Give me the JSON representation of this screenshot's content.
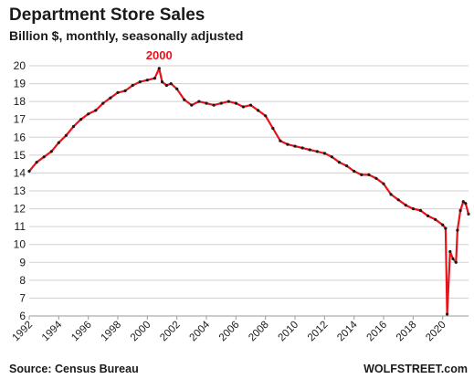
{
  "chart_data": {
    "type": "line",
    "title": "Department  Store Sales",
    "subtitle": "Billion $, monthly, seasonally adjusted",
    "source": "Source: Census Bureau",
    "brand": "WOLFSTREET.com",
    "annotation": {
      "text": "2000",
      "x": 2000.8,
      "y": 19.85
    },
    "ylim": [
      6,
      20
    ],
    "xlim": [
      1992,
      2021.75
    ],
    "y_ticks": [
      6,
      7,
      8,
      9,
      10,
      11,
      12,
      13,
      14,
      15,
      16,
      17,
      18,
      19,
      20
    ],
    "x_ticks": [
      "1992",
      "1994",
      "1996",
      "1998",
      "2000",
      "2002",
      "2004",
      "2006",
      "2008",
      "2010",
      "2012",
      "2014",
      "2016",
      "2018",
      "2020"
    ],
    "grid": "horizontal",
    "legend": "none",
    "colors": {
      "line": "#e8121a",
      "points": "#1a1a1a"
    },
    "series": [
      {
        "x": [
          1992.0,
          1992.5,
          1993.0,
          1993.5,
          1994.0,
          1994.5,
          1995.0,
          1995.5,
          1996.0,
          1996.5,
          1997.0,
          1997.5,
          1998.0,
          1998.5,
          1999.0,
          1999.5,
          2000.0,
          2000.5,
          2000.8,
          2001.0,
          2001.3,
          2001.6,
          2002.0,
          2002.5,
          2003.0,
          2003.5,
          2004.0,
          2004.5,
          2005.0,
          2005.5,
          2006.0,
          2006.5,
          2007.0,
          2007.5,
          2008.0,
          2008.5,
          2009.0,
          2009.5,
          2010.0,
          2010.5,
          2011.0,
          2011.5,
          2012.0,
          2012.5,
          2013.0,
          2013.5,
          2014.0,
          2014.5,
          2015.0,
          2015.5,
          2016.0,
          2016.5,
          2017.0,
          2017.5,
          2018.0,
          2018.5,
          2019.0,
          2019.5,
          2020.0,
          2020.2,
          2020.3,
          2020.5,
          2020.7,
          2020.9,
          2021.0,
          2021.2,
          2021.4,
          2021.55,
          2021.75
        ],
        "y": [
          14.1,
          14.6,
          14.9,
          15.2,
          15.7,
          16.1,
          16.6,
          17.0,
          17.3,
          17.5,
          17.9,
          18.2,
          18.5,
          18.6,
          18.9,
          19.1,
          19.2,
          19.3,
          19.85,
          19.1,
          18.9,
          19.0,
          18.7,
          18.1,
          17.8,
          18.0,
          17.9,
          17.8,
          17.9,
          18.0,
          17.9,
          17.7,
          17.8,
          17.5,
          17.2,
          16.5,
          15.8,
          15.6,
          15.5,
          15.4,
          15.3,
          15.2,
          15.1,
          14.9,
          14.6,
          14.4,
          14.1,
          13.9,
          13.9,
          13.7,
          13.4,
          12.8,
          12.5,
          12.2,
          12.0,
          11.9,
          11.6,
          11.4,
          11.1,
          10.9,
          6.1,
          9.6,
          9.2,
          9.0,
          10.8,
          11.9,
          12.4,
          12.3,
          11.7
        ]
      }
    ]
  }
}
